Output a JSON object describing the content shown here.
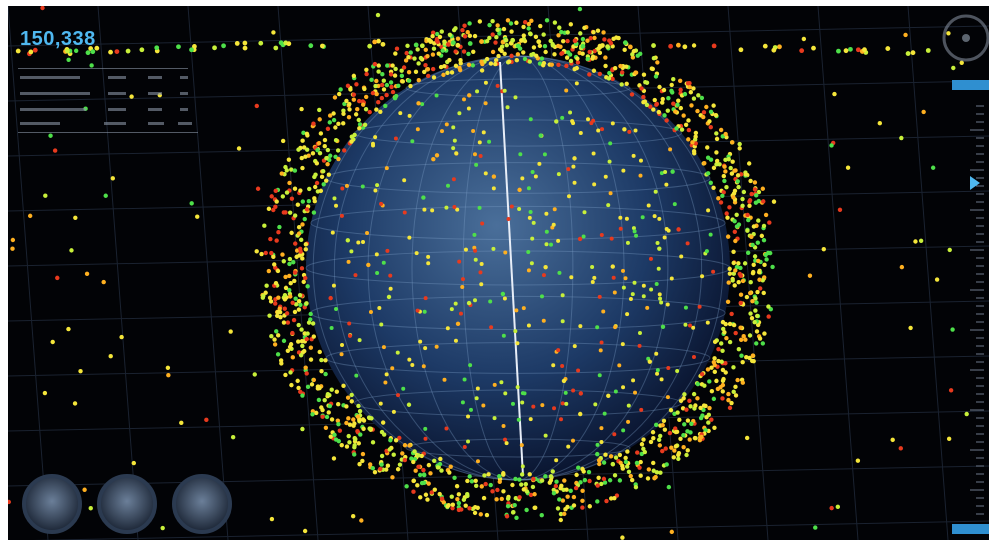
{
  "header": {
    "count": "150,338"
  }
}
